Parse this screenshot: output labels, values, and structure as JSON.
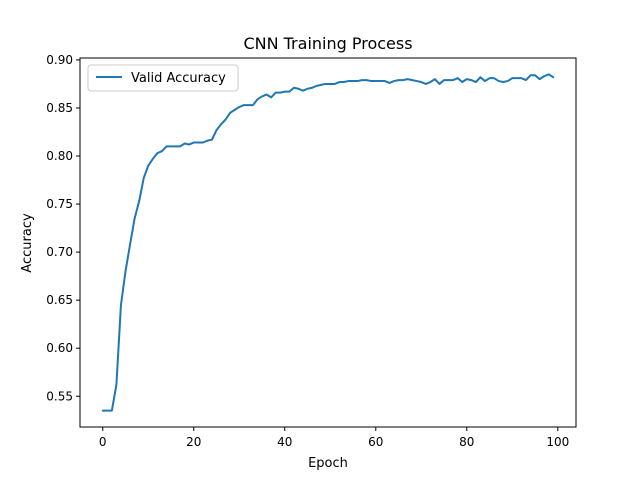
{
  "chart_data": {
    "type": "line",
    "title": "CNN Training Process",
    "xlabel": "Epoch",
    "ylabel": "Accuracy",
    "xlim": [
      -5,
      104
    ],
    "ylim": [
      0.518,
      0.902
    ],
    "xticks": [
      0,
      20,
      40,
      60,
      80,
      100
    ],
    "yticks": [
      0.55,
      0.6,
      0.65,
      0.7,
      0.75,
      0.8,
      0.85,
      0.9
    ],
    "xtick_labels": [
      "0",
      "20",
      "40",
      "60",
      "80",
      "100"
    ],
    "ytick_labels": [
      "0.55",
      "0.60",
      "0.65",
      "0.70",
      "0.75",
      "0.80",
      "0.85",
      "0.90"
    ],
    "grid": false,
    "legend_position": "upper-left",
    "series": [
      {
        "name": "Valid Accuracy",
        "color": "#1f77b4",
        "x": [
          0,
          1,
          2,
          3,
          4,
          5,
          6,
          7,
          8,
          9,
          10,
          11,
          12,
          13,
          14,
          15,
          16,
          17,
          18,
          19,
          20,
          21,
          22,
          23,
          24,
          25,
          26,
          27,
          28,
          29,
          30,
          31,
          32,
          33,
          34,
          35,
          36,
          37,
          38,
          39,
          40,
          41,
          42,
          43,
          44,
          45,
          46,
          47,
          48,
          49,
          50,
          51,
          52,
          53,
          54,
          55,
          56,
          57,
          58,
          59,
          60,
          61,
          62,
          63,
          64,
          65,
          66,
          67,
          68,
          69,
          70,
          71,
          72,
          73,
          74,
          75,
          76,
          77,
          78,
          79,
          80,
          81,
          82,
          83,
          84,
          85,
          86,
          87,
          88,
          89,
          90,
          91,
          92,
          93,
          94,
          95,
          96,
          97,
          98,
          99
        ],
        "y": [
          0.535,
          0.535,
          0.535,
          0.562,
          0.645,
          0.68,
          0.708,
          0.735,
          0.753,
          0.777,
          0.79,
          0.797,
          0.803,
          0.805,
          0.81,
          0.81,
          0.81,
          0.81,
          0.813,
          0.812,
          0.814,
          0.814,
          0.814,
          0.816,
          0.817,
          0.827,
          0.833,
          0.838,
          0.845,
          0.848,
          0.851,
          0.853,
          0.853,
          0.853,
          0.859,
          0.862,
          0.864,
          0.861,
          0.866,
          0.866,
          0.867,
          0.867,
          0.871,
          0.87,
          0.868,
          0.87,
          0.871,
          0.873,
          0.874,
          0.875,
          0.875,
          0.875,
          0.877,
          0.877,
          0.878,
          0.878,
          0.878,
          0.879,
          0.879,
          0.878,
          0.878,
          0.878,
          0.878,
          0.876,
          0.878,
          0.879,
          0.879,
          0.88,
          0.879,
          0.878,
          0.877,
          0.875,
          0.877,
          0.88,
          0.875,
          0.879,
          0.879,
          0.879,
          0.881,
          0.877,
          0.88,
          0.879,
          0.877,
          0.882,
          0.878,
          0.881,
          0.881,
          0.878,
          0.877,
          0.878,
          0.881,
          0.881,
          0.881,
          0.879,
          0.884,
          0.884,
          0.88,
          0.883,
          0.885,
          0.882
        ]
      }
    ]
  }
}
